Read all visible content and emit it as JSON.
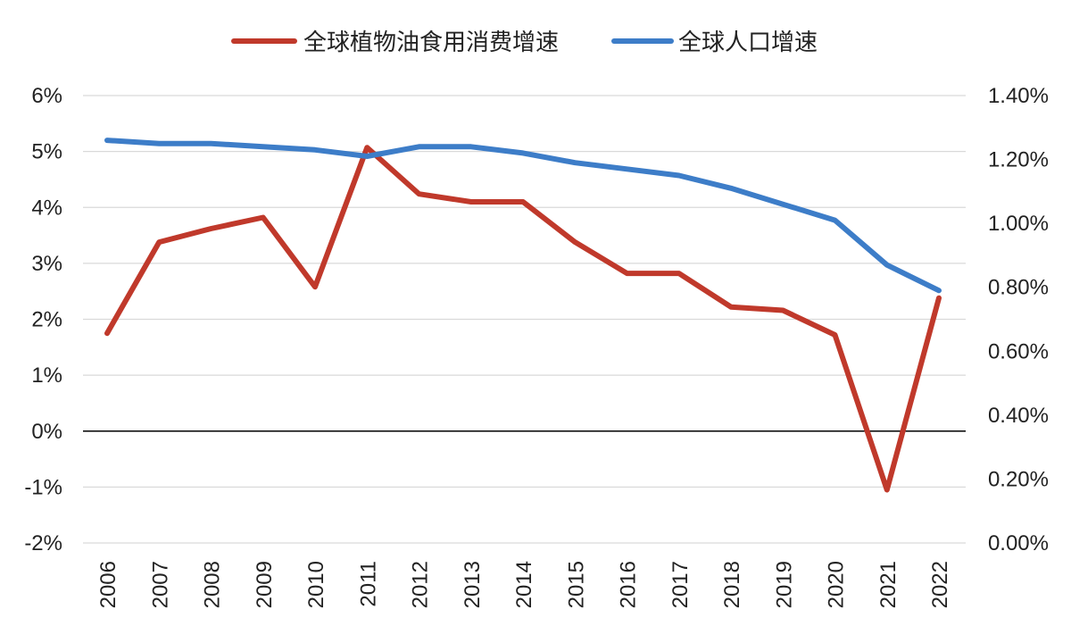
{
  "chart_data": {
    "type": "line",
    "title": "",
    "categories": [
      "2006",
      "2007",
      "2008",
      "2009",
      "2010",
      "2011",
      "2012",
      "2013",
      "2014",
      "2015",
      "2016",
      "2017",
      "2018",
      "2019",
      "2020",
      "2021",
      "2022"
    ],
    "series": [
      {
        "name": "全球植物油食用消费增速",
        "axis": "left",
        "color": "#c0392b",
        "values": [
          1.75,
          3.38,
          3.62,
          3.82,
          2.58,
          5.07,
          4.24,
          4.1,
          4.1,
          3.38,
          2.82,
          2.82,
          2.22,
          2.16,
          1.72,
          -1.05,
          2.38
        ]
      },
      {
        "name": "全球人口增速",
        "axis": "right",
        "color": "#3d7dc8",
        "values": [
          1.26,
          1.25,
          1.25,
          1.24,
          1.23,
          1.21,
          1.24,
          1.24,
          1.22,
          1.19,
          1.17,
          1.15,
          1.11,
          1.06,
          1.01,
          0.87,
          0.79
        ]
      }
    ],
    "y_left": {
      "min": -2,
      "max": 6,
      "ticks": [
        "-2%",
        "-1%",
        "0%",
        "1%",
        "2%",
        "3%",
        "4%",
        "5%",
        "6%"
      ],
      "tick_values": [
        -2,
        -1,
        0,
        1,
        2,
        3,
        4,
        5,
        6
      ]
    },
    "y_right": {
      "min": 0,
      "max": 1.4,
      "ticks": [
        "0.00%",
        "0.20%",
        "0.40%",
        "0.60%",
        "0.80%",
        "1.00%",
        "1.20%",
        "1.40%"
      ],
      "tick_values": [
        0,
        0.2,
        0.4,
        0.6,
        0.8,
        1.0,
        1.2,
        1.4
      ]
    },
    "xlabel": "",
    "ylabel": "",
    "grid": true,
    "legend_position": "top-center"
  }
}
